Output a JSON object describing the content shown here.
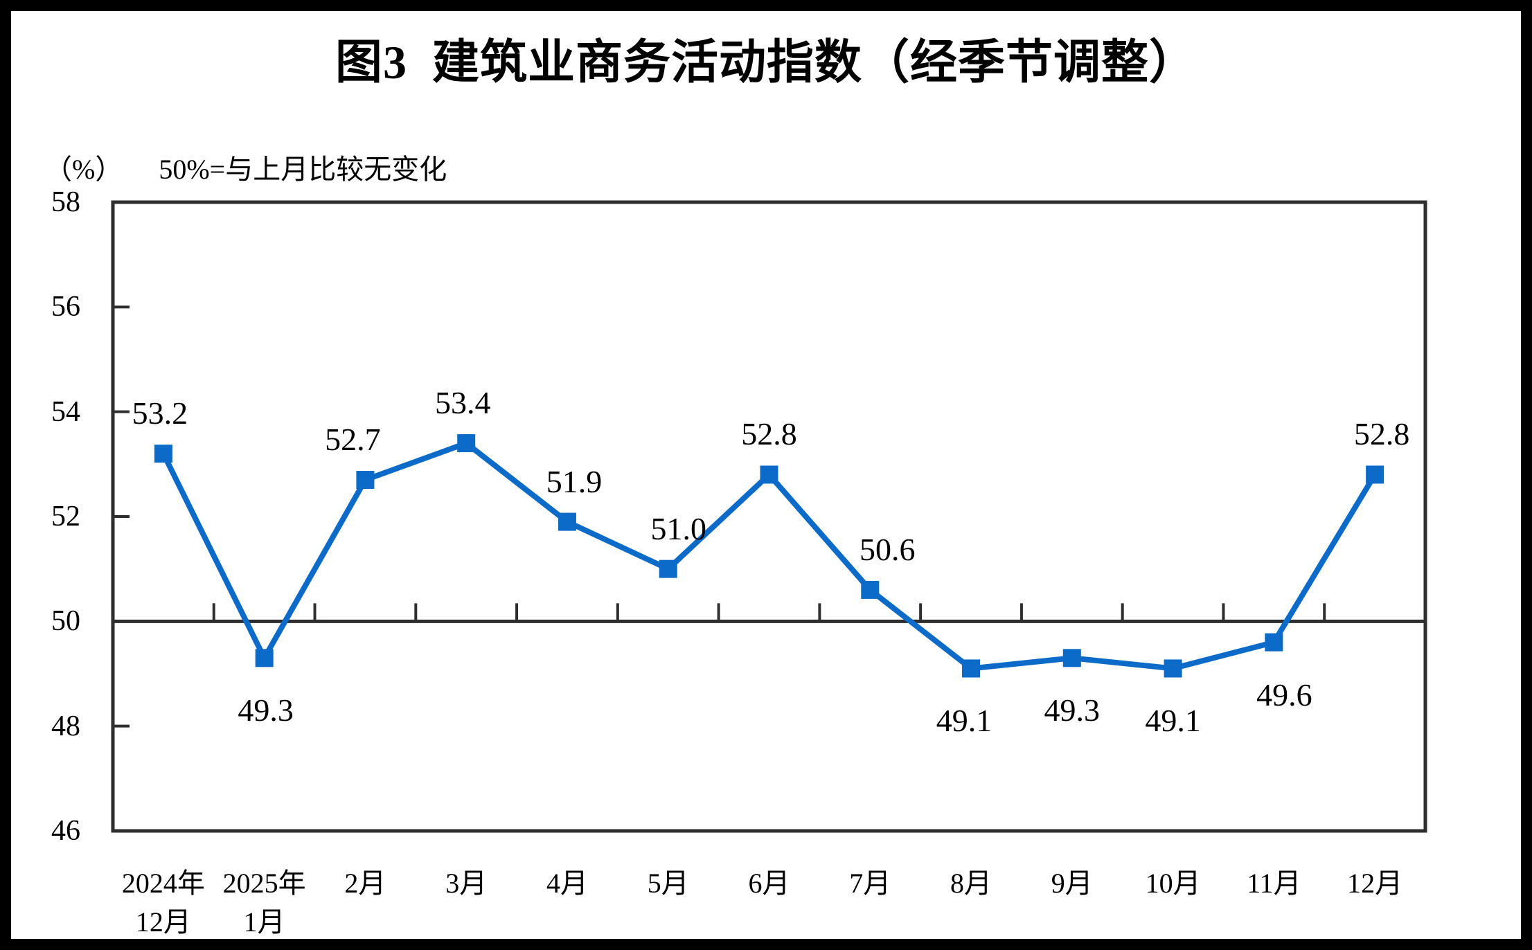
{
  "title": "图3  建筑业商务活动指数（经季节调整）",
  "subtitle": {
    "unit_label": "（%）",
    "reference_note": "50%=与上月比较无变化"
  },
  "chart_data": {
    "type": "line",
    "title": "图3 建筑业商务活动指数（经季节调整）",
    "unit_label": "（%）",
    "reference_note": "50%=与上月比较无变化",
    "categories": [
      [
        "2024年",
        "12月"
      ],
      [
        "2025年",
        "1月"
      ],
      [
        "2月"
      ],
      [
        "3月"
      ],
      [
        "4月"
      ],
      [
        "5月"
      ],
      [
        "6月"
      ],
      [
        "7月"
      ],
      [
        "8月"
      ],
      [
        "9月"
      ],
      [
        "10月"
      ],
      [
        "11月"
      ],
      [
        "12月"
      ]
    ],
    "values": [
      53.2,
      49.3,
      52.7,
      53.4,
      51.9,
      51.0,
      52.8,
      50.6,
      49.1,
      49.3,
      49.1,
      49.6,
      52.8
    ],
    "point_labels": [
      "53.2",
      "49.3",
      "52.7",
      "53.4",
      "51.9",
      "51.0",
      "52.8",
      "50.6",
      "49.1",
      "49.3",
      "49.1",
      "49.6",
      "52.8"
    ],
    "ylim": [
      46,
      58
    ],
    "yticks": [
      46,
      48,
      50,
      52,
      54,
      56,
      58
    ],
    "reference_line": 50,
    "grid": false,
    "legend": "none",
    "marker": "square",
    "label_layout": {
      "sides": [
        "above",
        "below",
        "above",
        "above",
        "above",
        "above",
        "above",
        "above",
        "below",
        "below",
        "below",
        "below",
        "above"
      ],
      "dx": [
        -5,
        2,
        -18,
        -5,
        10,
        15,
        0,
        25,
        -10,
        0,
        0,
        15,
        10
      ],
      "dy_above": -58,
      "dy_below": 76
    },
    "colors": {
      "line": "#0C6BC8",
      "marker": "#0C6BC8",
      "axis": "#2E2E2E",
      "text": "#000000",
      "background": "#FFFFFF",
      "frame_border": "#000000"
    }
  }
}
